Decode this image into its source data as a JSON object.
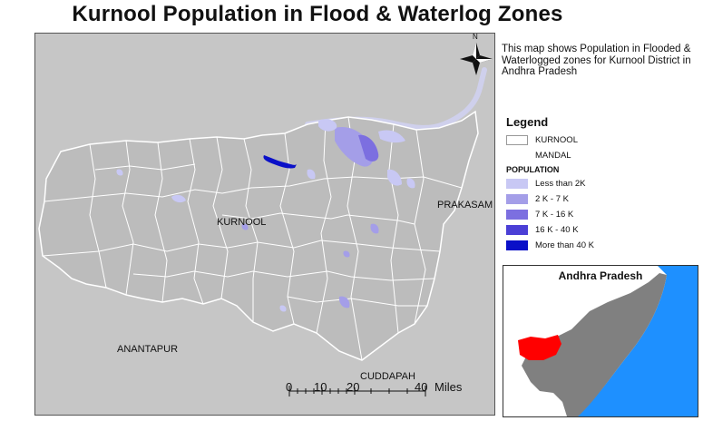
{
  "title": "Kurnool Population in Flood & Waterlog Zones",
  "north_label": "N",
  "description": "This map shows Population in Flooded & Waterlogged zones for Kurnool District in Andhra Pradesh",
  "labels": {
    "kurnool": "KURNOOL",
    "prakasam": "PRAKASAM",
    "anantapur": "ANANTAPUR",
    "cuddapah": "CUDDAPAH"
  },
  "legend": {
    "title": "Legend",
    "kurnool": "KURNOOL",
    "mandal": "MANDAL",
    "population_heading": "POPULATION",
    "classes": [
      {
        "label": "Less than 2K",
        "color": "#c8c8f4"
      },
      {
        "label": "2 K - 7 K",
        "color": "#a49ee8"
      },
      {
        "label": "7 K - 16 K",
        "color": "#7c6fe0"
      },
      {
        "label": "16 K - 40 K",
        "color": "#4b3fd6"
      },
      {
        "label": "More than 40 K",
        "color": "#0a10c8"
      }
    ]
  },
  "scale_bar": {
    "ticks": [
      "0",
      "10",
      "20",
      "40"
    ],
    "unit": "Miles"
  },
  "inset": {
    "title": "Andhra Pradesh",
    "highlight_color": "#ff0000",
    "state_color": "#808080",
    "sea_color": "#1e90ff"
  },
  "colors": {
    "background_land": "#c6c6c6",
    "district_fill": "#bcbcbc",
    "boundary": "#ffffff"
  }
}
